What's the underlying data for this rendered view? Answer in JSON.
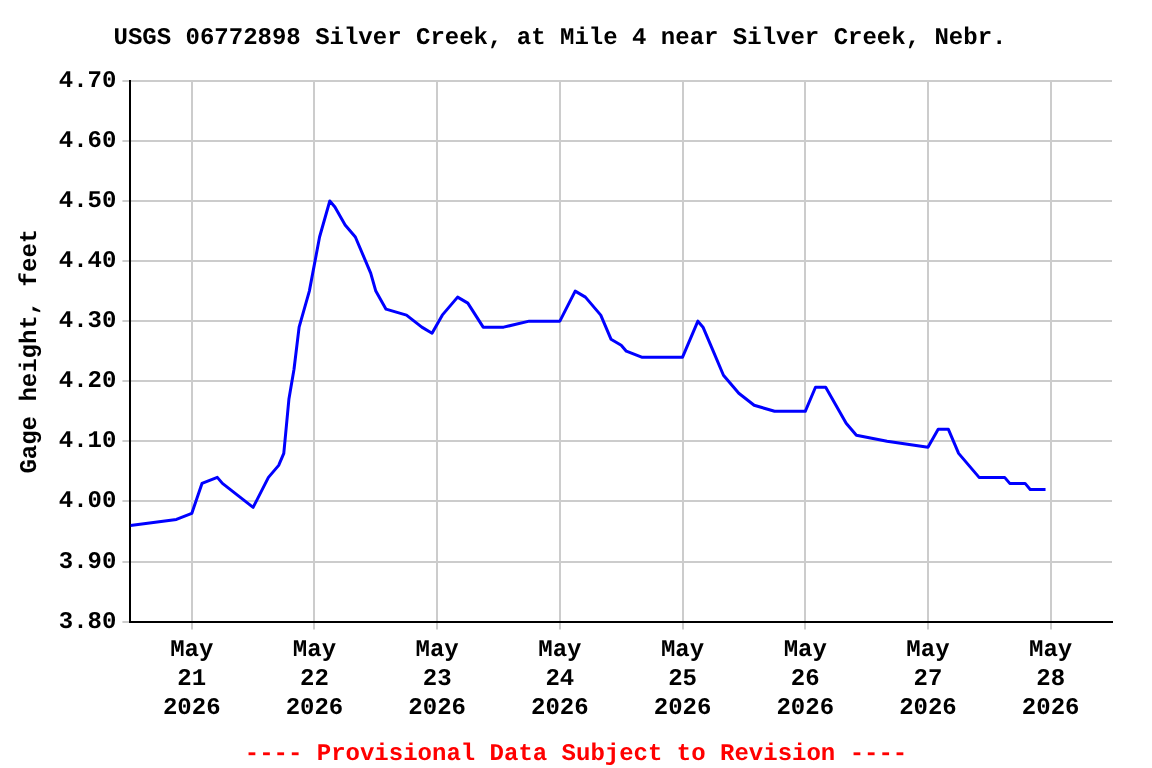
{
  "chart_data": {
    "type": "line",
    "title": "USGS 06772898 Silver Creek, at Mile 4 near Silver Creek, Nebr.",
    "ylabel": "Gage height, feet",
    "annotations": [
      "---- Provisional Data Subject to Revision ----"
    ],
    "xlim": [
      "2026-05-20T12:00",
      "2026-05-28T12:00"
    ],
    "xticks": [
      {
        "value": "2026-05-21",
        "label": "May 21 2026"
      },
      {
        "value": "2026-05-22",
        "label": "May 22 2026"
      },
      {
        "value": "2026-05-23",
        "label": "May 23 2026"
      },
      {
        "value": "2026-05-24",
        "label": "May 24 2026"
      },
      {
        "value": "2026-05-25",
        "label": "May 25 2026"
      },
      {
        "value": "2026-05-26",
        "label": "May 26 2026"
      },
      {
        "value": "2026-05-27",
        "label": "May 27 2026"
      },
      {
        "value": "2026-05-28",
        "label": "May 28 2026"
      }
    ],
    "ylim": [
      3.8,
      4.7
    ],
    "yticks": [
      {
        "value": 3.8,
        "label": "3.80"
      },
      {
        "value": 3.9,
        "label": "3.90"
      },
      {
        "value": 4.0,
        "label": "4.00"
      },
      {
        "value": 4.1,
        "label": "4.10"
      },
      {
        "value": 4.2,
        "label": "4.20"
      },
      {
        "value": 4.3,
        "label": "4.30"
      },
      {
        "value": 4.4,
        "label": "4.40"
      },
      {
        "value": 4.5,
        "label": "4.50"
      },
      {
        "value": 4.6,
        "label": "4.60"
      },
      {
        "value": 4.7,
        "label": "4.70"
      }
    ],
    "grid": true,
    "legend": false,
    "marker": "none",
    "line_style": "solid",
    "series": [
      {
        "color": "#0000ff",
        "x": [
          "2026-05-20T12:00",
          "2026-05-20T21:00",
          "2026-05-21T00:00",
          "2026-05-21T02:00",
          "2026-05-21T05:00",
          "2026-05-21T06:00",
          "2026-05-21T09:00",
          "2026-05-21T12:00",
          "2026-05-21T15:00",
          "2026-05-21T17:00",
          "2026-05-21T18:00",
          "2026-05-21T19:00",
          "2026-05-21T20:00",
          "2026-05-21T21:00",
          "2026-05-21T23:00",
          "2026-05-22T01:00",
          "2026-05-22T03:00",
          "2026-05-22T04:00",
          "2026-05-22T06:00",
          "2026-05-22T08:00",
          "2026-05-22T11:00",
          "2026-05-22T12:00",
          "2026-05-22T14:00",
          "2026-05-22T18:00",
          "2026-05-22T21:00",
          "2026-05-22T23:00",
          "2026-05-23T01:00",
          "2026-05-23T04:00",
          "2026-05-23T06:00",
          "2026-05-23T09:00",
          "2026-05-23T13:00",
          "2026-05-23T18:00",
          "2026-05-24T00:00",
          "2026-05-24T03:00",
          "2026-05-24T05:00",
          "2026-05-24T08:00",
          "2026-05-24T10:00",
          "2026-05-24T12:00",
          "2026-05-24T13:00",
          "2026-05-24T16:00",
          "2026-05-24T21:00",
          "2026-05-25T00:00",
          "2026-05-25T02:00",
          "2026-05-25T03:00",
          "2026-05-25T04:00",
          "2026-05-25T06:00",
          "2026-05-25T08:00",
          "2026-05-25T11:00",
          "2026-05-25T14:00",
          "2026-05-25T18:00",
          "2026-05-26T00:00",
          "2026-05-26T02:00",
          "2026-05-26T04:00",
          "2026-05-26T06:00",
          "2026-05-26T08:00",
          "2026-05-26T10:00",
          "2026-05-26T16:00",
          "2026-05-27T00:00",
          "2026-05-27T02:00",
          "2026-05-27T04:00",
          "2026-05-27T06:00",
          "2026-05-27T09:00",
          "2026-05-27T10:00",
          "2026-05-27T15:00",
          "2026-05-27T16:00",
          "2026-05-27T19:00",
          "2026-05-27T20:00",
          "2026-05-27T23:00"
        ],
        "values": [
          3.96,
          3.97,
          3.98,
          4.03,
          4.04,
          4.03,
          4.01,
          3.99,
          4.04,
          4.06,
          4.08,
          4.17,
          4.22,
          4.29,
          4.35,
          4.44,
          4.5,
          4.49,
          4.46,
          4.44,
          4.38,
          4.35,
          4.32,
          4.31,
          4.29,
          4.28,
          4.31,
          4.34,
          4.33,
          4.29,
          4.29,
          4.3,
          4.3,
          4.35,
          4.34,
          4.31,
          4.27,
          4.26,
          4.25,
          4.24,
          4.24,
          4.24,
          4.28,
          4.3,
          4.29,
          4.25,
          4.21,
          4.18,
          4.16,
          4.15,
          4.15,
          4.19,
          4.19,
          4.16,
          4.13,
          4.11,
          4.1,
          4.09,
          4.12,
          4.12,
          4.08,
          4.05,
          4.04,
          4.04,
          4.03,
          4.03,
          4.02,
          4.02
        ]
      }
    ]
  }
}
